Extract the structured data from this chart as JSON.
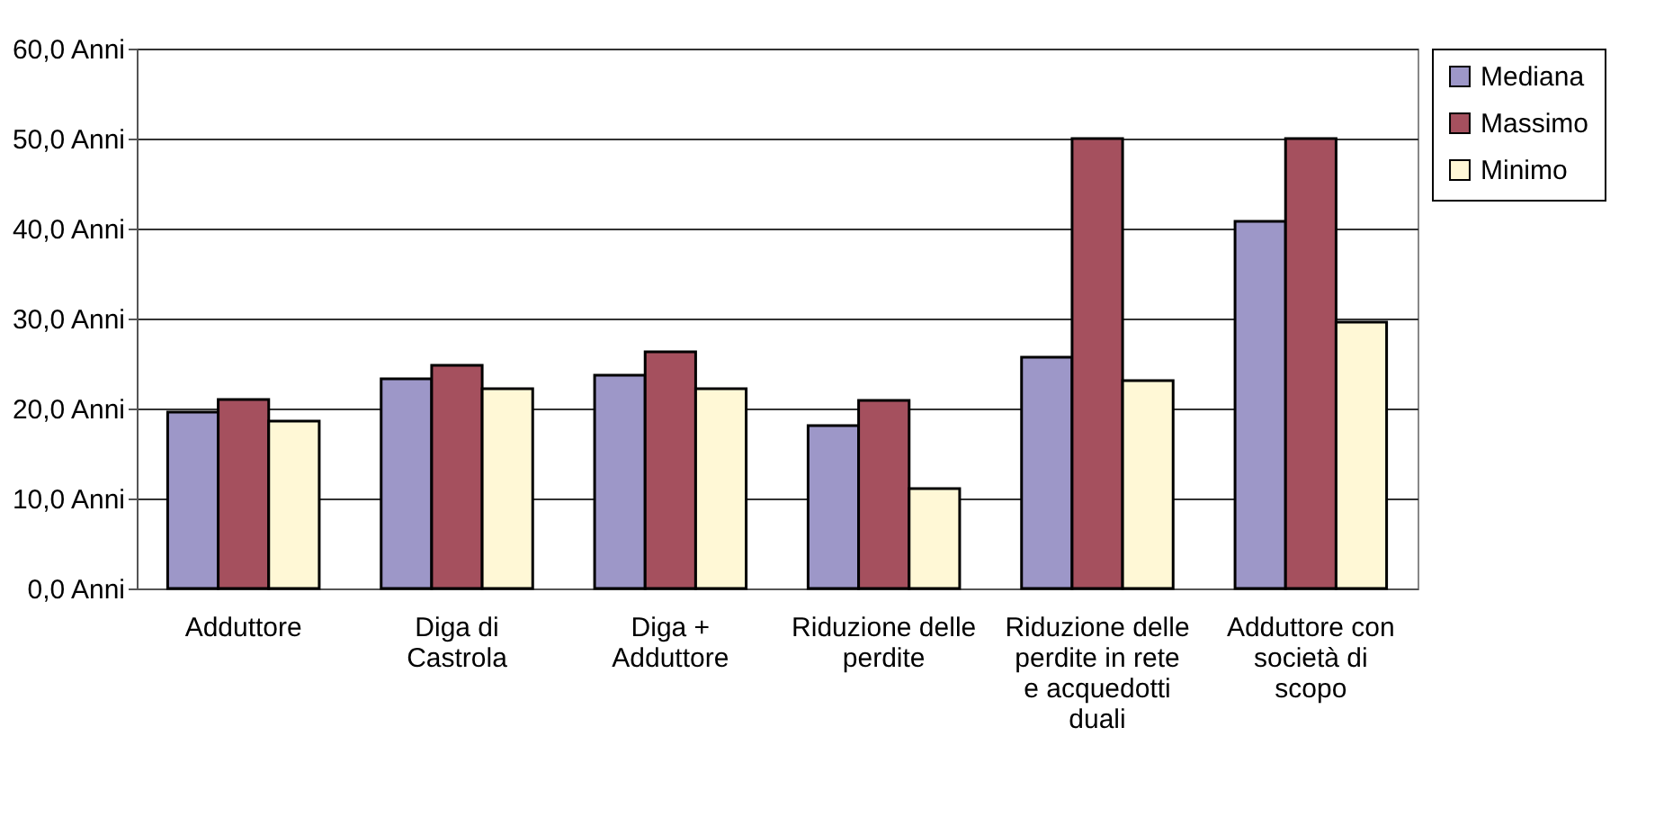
{
  "chart_data": {
    "type": "bar",
    "categories": [
      "Adduttore",
      "Diga di Castrola",
      "Diga + Adduttore",
      "Riduzione delle perdite",
      "Riduzione delle perdite in rete e acquedotti duali",
      "Adduttore con società di scopo"
    ],
    "series": [
      {
        "name": "Mediana",
        "color": "#9d97c8",
        "values": [
          19.6,
          23.3,
          23.7,
          18.1,
          25.7,
          40.8
        ]
      },
      {
        "name": "Massimo",
        "color": "#a5505e",
        "values": [
          21.0,
          24.8,
          26.3,
          20.9,
          50.0,
          50.0
        ]
      },
      {
        "name": "Minimo",
        "color": "#fff8d6",
        "values": [
          18.6,
          22.2,
          22.2,
          11.1,
          23.1,
          29.6
        ]
      }
    ],
    "ylim": [
      0,
      60
    ],
    "yticks": [
      {
        "value": 0,
        "label": "0,0 Anni"
      },
      {
        "value": 10,
        "label": "10,0 Anni"
      },
      {
        "value": 20,
        "label": "20,0 Anni"
      },
      {
        "value": 30,
        "label": "30,0 Anni"
      },
      {
        "value": 40,
        "label": "40,0 Anni"
      },
      {
        "value": 50,
        "label": "50,0 Anni"
      },
      {
        "value": 60,
        "label": "60,0 Anni"
      }
    ],
    "grid": "y",
    "legend": "right"
  }
}
